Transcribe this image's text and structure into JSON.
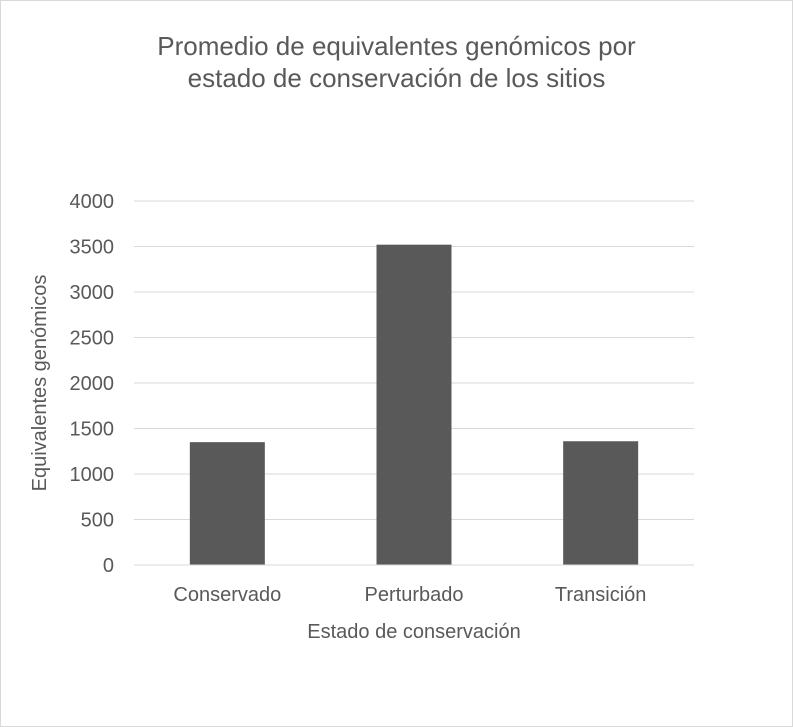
{
  "chart_data": {
    "type": "bar",
    "title_lines": [
      "Promedio de equivalentes genómicos por",
      "estado de conservación de los sitios"
    ],
    "xlabel": "Estado de conservación",
    "ylabel": "Equivalentes genómicos",
    "categories": [
      "Conservado",
      "Perturbado",
      "Transición"
    ],
    "values": [
      1350,
      3520,
      1360
    ],
    "ylim": [
      0,
      4000
    ],
    "yticks": [
      "0",
      "500",
      "1000",
      "1500",
      "2000",
      "2500",
      "3000",
      "3500",
      "4000"
    ],
    "grid": true,
    "legend": "none",
    "colors": {
      "bar": "#595959",
      "grid": "#d9d9d9",
      "text": "#595959"
    }
  }
}
